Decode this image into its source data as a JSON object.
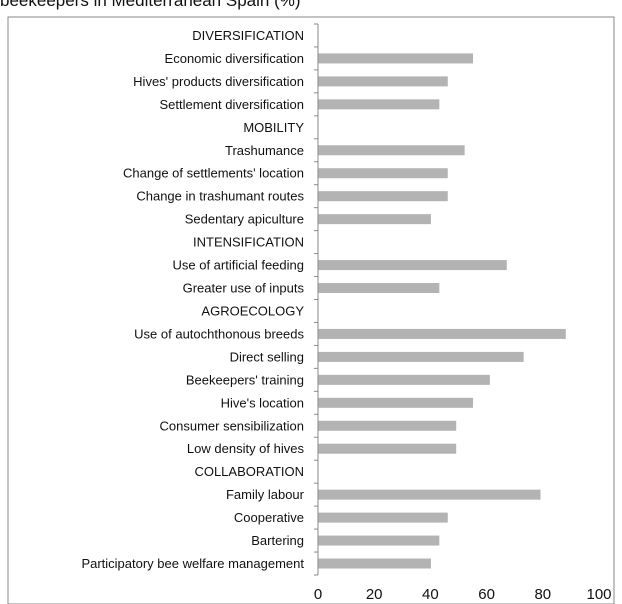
{
  "chart_data": {
    "type": "bar",
    "orientation": "horizontal",
    "title": "beekeepers in Mediterranean Spain (%)",
    "xlim": [
      0,
      100
    ],
    "xticks": [
      0,
      20,
      40,
      60,
      80,
      100
    ],
    "grid": false,
    "bar_color": "#b3b3b3",
    "categories": [
      "DIVERSIFICATION",
      "Economic diversification",
      "Hives' products diversification",
      "Settlement diversification",
      "MOBILITY",
      "Trashumance",
      "Change of settlements' location",
      "Change in trashumant routes",
      "Sedentary apiculture",
      "INTENSIFICATION",
      "Use of artificial feeding",
      "Greater use of inputs",
      "AGROECOLOGY",
      "Use of autochthonous breeds",
      "Direct selling",
      "Beekeepers' training",
      "Hive's location",
      "Consumer sensibilization",
      "Low density of hives",
      "COLLABORATION",
      "Family labour",
      "Cooperative",
      "Bartering",
      "Participatory bee welfare management"
    ],
    "values": [
      null,
      55,
      46,
      43,
      null,
      52,
      46,
      46,
      40,
      null,
      67,
      43,
      null,
      88,
      73,
      61,
      55,
      49,
      49,
      null,
      79,
      46,
      43,
      40
    ]
  }
}
